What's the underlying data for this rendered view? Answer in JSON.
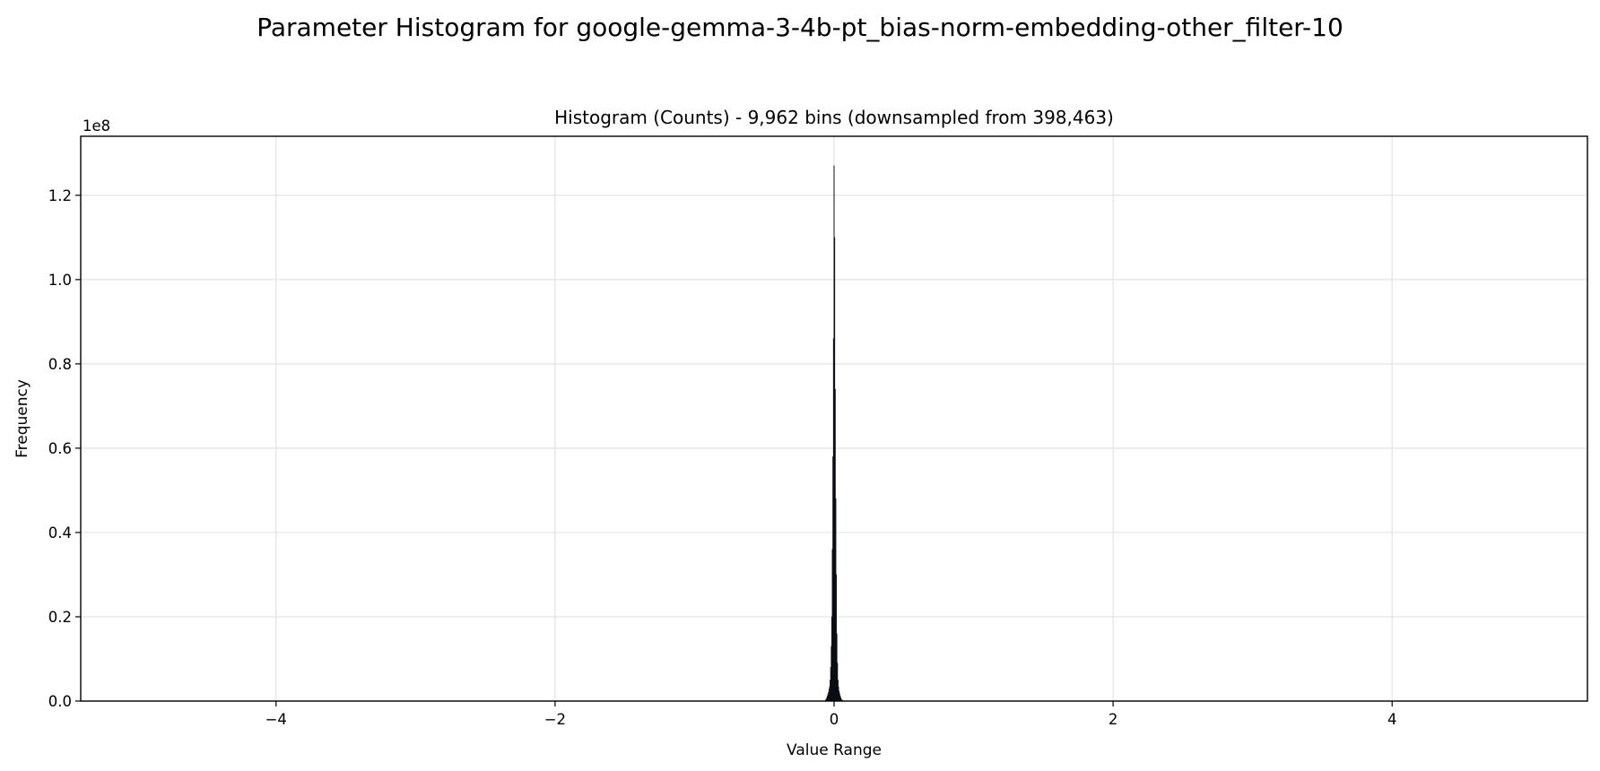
{
  "chart_data": {
    "type": "bar",
    "title": "Parameter Histogram for google-gemma-3-4b-pt_bias-norm-embedding-other_filter-10",
    "subtitle": "Histogram (Counts) - 9,962 bins (downsampled from 398,463)",
    "xlabel": "Value Range",
    "ylabel": "Frequency",
    "y_offset_label": "1e8",
    "xlim": [
      -5.4,
      5.4
    ],
    "ylim": [
      0,
      1.34
    ],
    "y_multiplier": 100000000,
    "x_ticks": [
      -4,
      -2,
      0,
      2,
      4
    ],
    "x_tick_labels": [
      "−4",
      "−2",
      "0",
      "2",
      "4"
    ],
    "y_ticks": [
      0.0,
      0.2,
      0.4,
      0.6,
      0.8,
      1.0,
      1.2
    ],
    "y_tick_labels": [
      "0.0",
      "0.2",
      "0.4",
      "0.6",
      "0.8",
      "1.0",
      "1.2"
    ],
    "grid": true,
    "bar_color": "#1f2a44",
    "edge_color": "#000000",
    "bins": [
      {
        "x": -0.06,
        "y": 0.003
      },
      {
        "x": -0.056,
        "y": 0.005
      },
      {
        "x": -0.052,
        "y": 0.008
      },
      {
        "x": -0.048,
        "y": 0.012
      },
      {
        "x": -0.044,
        "y": 0.016
      },
      {
        "x": -0.04,
        "y": 0.021
      },
      {
        "x": -0.036,
        "y": 0.028
      },
      {
        "x": -0.032,
        "y": 0.034
      },
      {
        "x": -0.028,
        "y": 0.05
      },
      {
        "x": -0.024,
        "y": 0.08
      },
      {
        "x": -0.02,
        "y": 0.13
      },
      {
        "x": -0.016,
        "y": 0.2
      },
      {
        "x": -0.012,
        "y": 0.36
      },
      {
        "x": -0.008,
        "y": 0.58
      },
      {
        "x": -0.004,
        "y": 0.86
      },
      {
        "x": 0.0,
        "y": 1.27
      },
      {
        "x": 0.004,
        "y": 1.1
      },
      {
        "x": 0.008,
        "y": 0.74
      },
      {
        "x": 0.012,
        "y": 0.48
      },
      {
        "x": 0.016,
        "y": 0.3
      },
      {
        "x": 0.02,
        "y": 0.16
      },
      {
        "x": 0.024,
        "y": 0.09
      },
      {
        "x": 0.028,
        "y": 0.05
      },
      {
        "x": 0.032,
        "y": 0.034
      },
      {
        "x": 0.036,
        "y": 0.024
      },
      {
        "x": 0.04,
        "y": 0.018
      },
      {
        "x": 0.044,
        "y": 0.012
      },
      {
        "x": 0.048,
        "y": 0.008
      },
      {
        "x": 0.052,
        "y": 0.005
      },
      {
        "x": 0.056,
        "y": 0.003
      },
      {
        "x": 0.06,
        "y": 0.002
      }
    ]
  }
}
